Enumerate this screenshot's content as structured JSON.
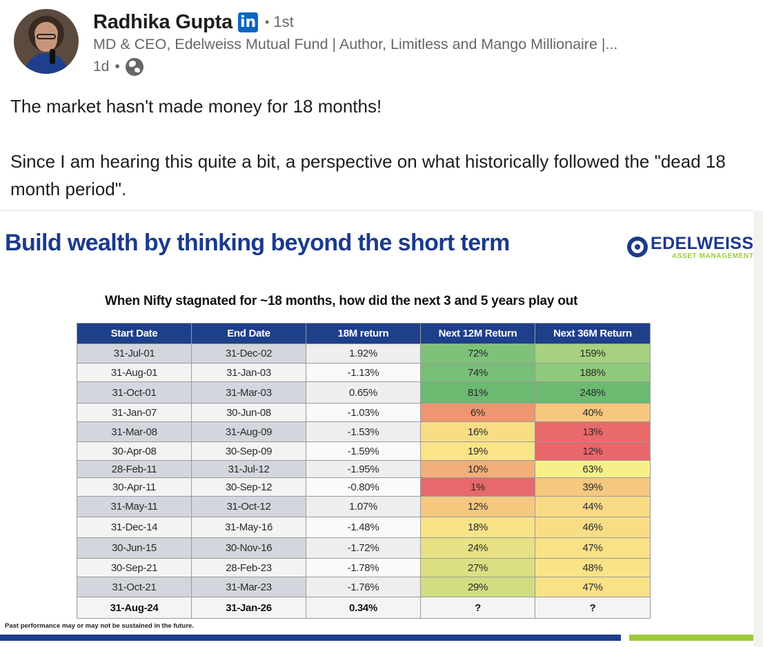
{
  "post": {
    "author_name": "Radhika Gupta",
    "linkedin_badge": "in",
    "degree": "1st",
    "headline": "MD & CEO, Edelweiss Mutual Fund | Author, Limitless and Mango Millionaire |...",
    "time_ago": "1d",
    "visibility_icon": "globe-icon",
    "text_line1": "The market hasn't made money for 18 months!",
    "text_line2": "Since I am hearing this quite a bit, a perspective on what historically followed the \"dead 18 month period\"."
  },
  "slide": {
    "title": "Build wealth by thinking beyond the short term",
    "brand_name": "EDELWEISS",
    "brand_sub": "ASSET MANAGEMENT",
    "table_caption": "When Nifty stagnated for ~18 months, how did the next 3 and 5 years play out",
    "headers": [
      "Start Date",
      "End Date",
      "18M return",
      "Next 12M Return",
      "Next 36M  Return"
    ],
    "rows": [
      [
        "31-Jul-01",
        "31-Dec-02",
        "1.92%",
        "72%",
        "159%"
      ],
      [
        "31-Aug-01",
        "31-Jan-03",
        "-1.13%",
        "74%",
        "188%"
      ],
      [
        "31-Oct-01",
        "31-Mar-03",
        "0.65%",
        "81%",
        "248%"
      ],
      [
        "31-Jan-07",
        "30-Jun-08",
        "-1.03%",
        "6%",
        "40%"
      ],
      [
        "31-Mar-08",
        "31-Aug-09",
        "-1.53%",
        "16%",
        "13%"
      ],
      [
        "30-Apr-08",
        "30-Sep-09",
        "-1.59%",
        "19%",
        "12%"
      ],
      [
        "28-Feb-11",
        "31-Jul-12",
        "-1.95%",
        "10%",
        "63%"
      ],
      [
        "30-Apr-11",
        "30-Sep-12",
        "-0.80%",
        "1%",
        "39%"
      ],
      [
        "31-May-11",
        "31-Oct-12",
        "1.07%",
        "12%",
        "44%"
      ],
      [
        "31-Dec-14",
        "31-May-16",
        "-1.48%",
        "18%",
        "46%"
      ],
      [
        "30-Jun-15",
        "30-Nov-16",
        "-1.72%",
        "24%",
        "47%"
      ],
      [
        "30-Sep-21",
        "28-Feb-23",
        "-1.78%",
        "27%",
        "48%"
      ],
      [
        "31-Oct-21",
        "31-Mar-23",
        "-1.76%",
        "29%",
        "47%"
      ],
      [
        "31-Aug-24",
        "31-Jan-26",
        "0.34%",
        "?",
        "?"
      ]
    ],
    "next12_colors": [
      "#7ec27a",
      "#78bf77",
      "#6cba72",
      "#ee9670",
      "#f8dd84",
      "#f9e487",
      "#f2ae78",
      "#e8696b",
      "#f6c77f",
      "#f9e387",
      "#e6e283",
      "#dbdf82",
      "#d2dc81",
      "#f4f4f4"
    ],
    "next36_colors": [
      "#a6d27f",
      "#8fca7c",
      "#6cba72",
      "#f6c77f",
      "#e86a6b",
      "#e8676b",
      "#f7f089",
      "#f6c77f",
      "#f9da84",
      "#f9dd85",
      "#f9e186",
      "#f9e387",
      "#f9e186",
      "#f4f4f4"
    ],
    "footnote": "Past performance may or may not be sustained in the future."
  }
}
